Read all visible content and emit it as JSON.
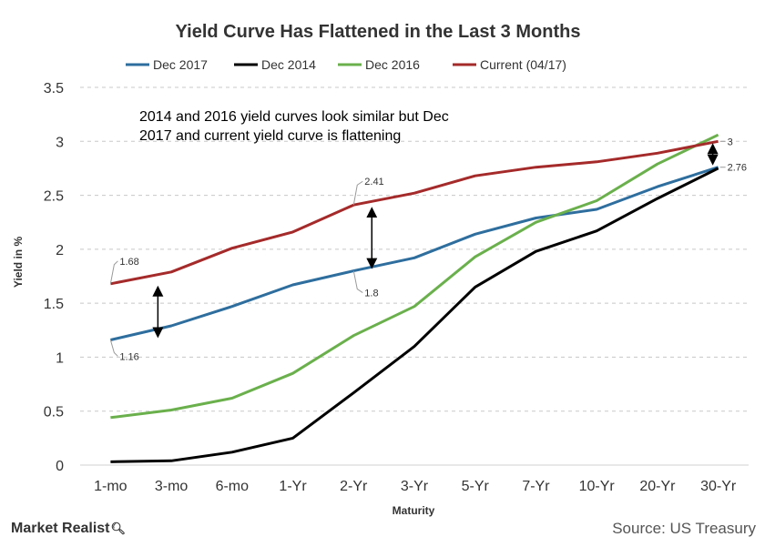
{
  "chart_data": {
    "type": "line",
    "title": "Yield Curve Has Flattened in the Last 3 Months",
    "xlabel": "Maturity",
    "ylabel": "Yield in %",
    "ylim": [
      0,
      3.5
    ],
    "yticks": [
      "0",
      "0.5",
      "1",
      "1.5",
      "2",
      "2.5",
      "3",
      "3.5"
    ],
    "grid": true,
    "legend": "top",
    "categories": [
      "1-mo",
      "3-mo",
      "6-mo",
      "1-Yr",
      "2-Yr",
      "3-Yr",
      "5-Yr",
      "7-Yr",
      "10-Yr",
      "20-Yr",
      "30-Yr"
    ],
    "series": [
      {
        "name": "Dec 2017",
        "color": "#2e6e9e",
        "values": [
          1.16,
          1.29,
          1.47,
          1.67,
          1.8,
          1.92,
          2.14,
          2.29,
          2.37,
          2.58,
          2.76
        ]
      },
      {
        "name": "Dec 2014",
        "color": "#000000",
        "values": [
          0.03,
          0.04,
          0.12,
          0.25,
          0.67,
          1.1,
          1.65,
          1.98,
          2.17,
          2.47,
          2.75
        ]
      },
      {
        "name": "Dec 2016",
        "color": "#6ab04c",
        "values": [
          0.44,
          0.51,
          0.62,
          0.85,
          1.2,
          1.47,
          1.93,
          2.25,
          2.45,
          2.79,
          3.06
        ]
      },
      {
        "name": "Current (04/17)",
        "color": "#a52a2a",
        "values": [
          1.68,
          1.79,
          2.01,
          2.16,
          2.41,
          2.52,
          2.68,
          2.76,
          2.81,
          2.89,
          3.0
        ]
      }
    ],
    "annotation": [
      "2014 and 2016 yield curves look similar but Dec",
      "2017 and current yield curve is flattening"
    ],
    "data_labels": [
      {
        "text": "1.68",
        "series": 3,
        "index": 0
      },
      {
        "text": "1.16",
        "series": 0,
        "index": 0
      },
      {
        "text": "2.41",
        "series": 3,
        "index": 4
      },
      {
        "text": "1.8",
        "series": 0,
        "index": 4
      },
      {
        "text": "3",
        "series": 3,
        "index": 10
      },
      {
        "text": "2.76",
        "series": 0,
        "index": 10
      }
    ]
  },
  "footer": {
    "brand": "Market Realist",
    "brand_icon": "magnifier-icon",
    "source": "Source: US Treasury"
  }
}
